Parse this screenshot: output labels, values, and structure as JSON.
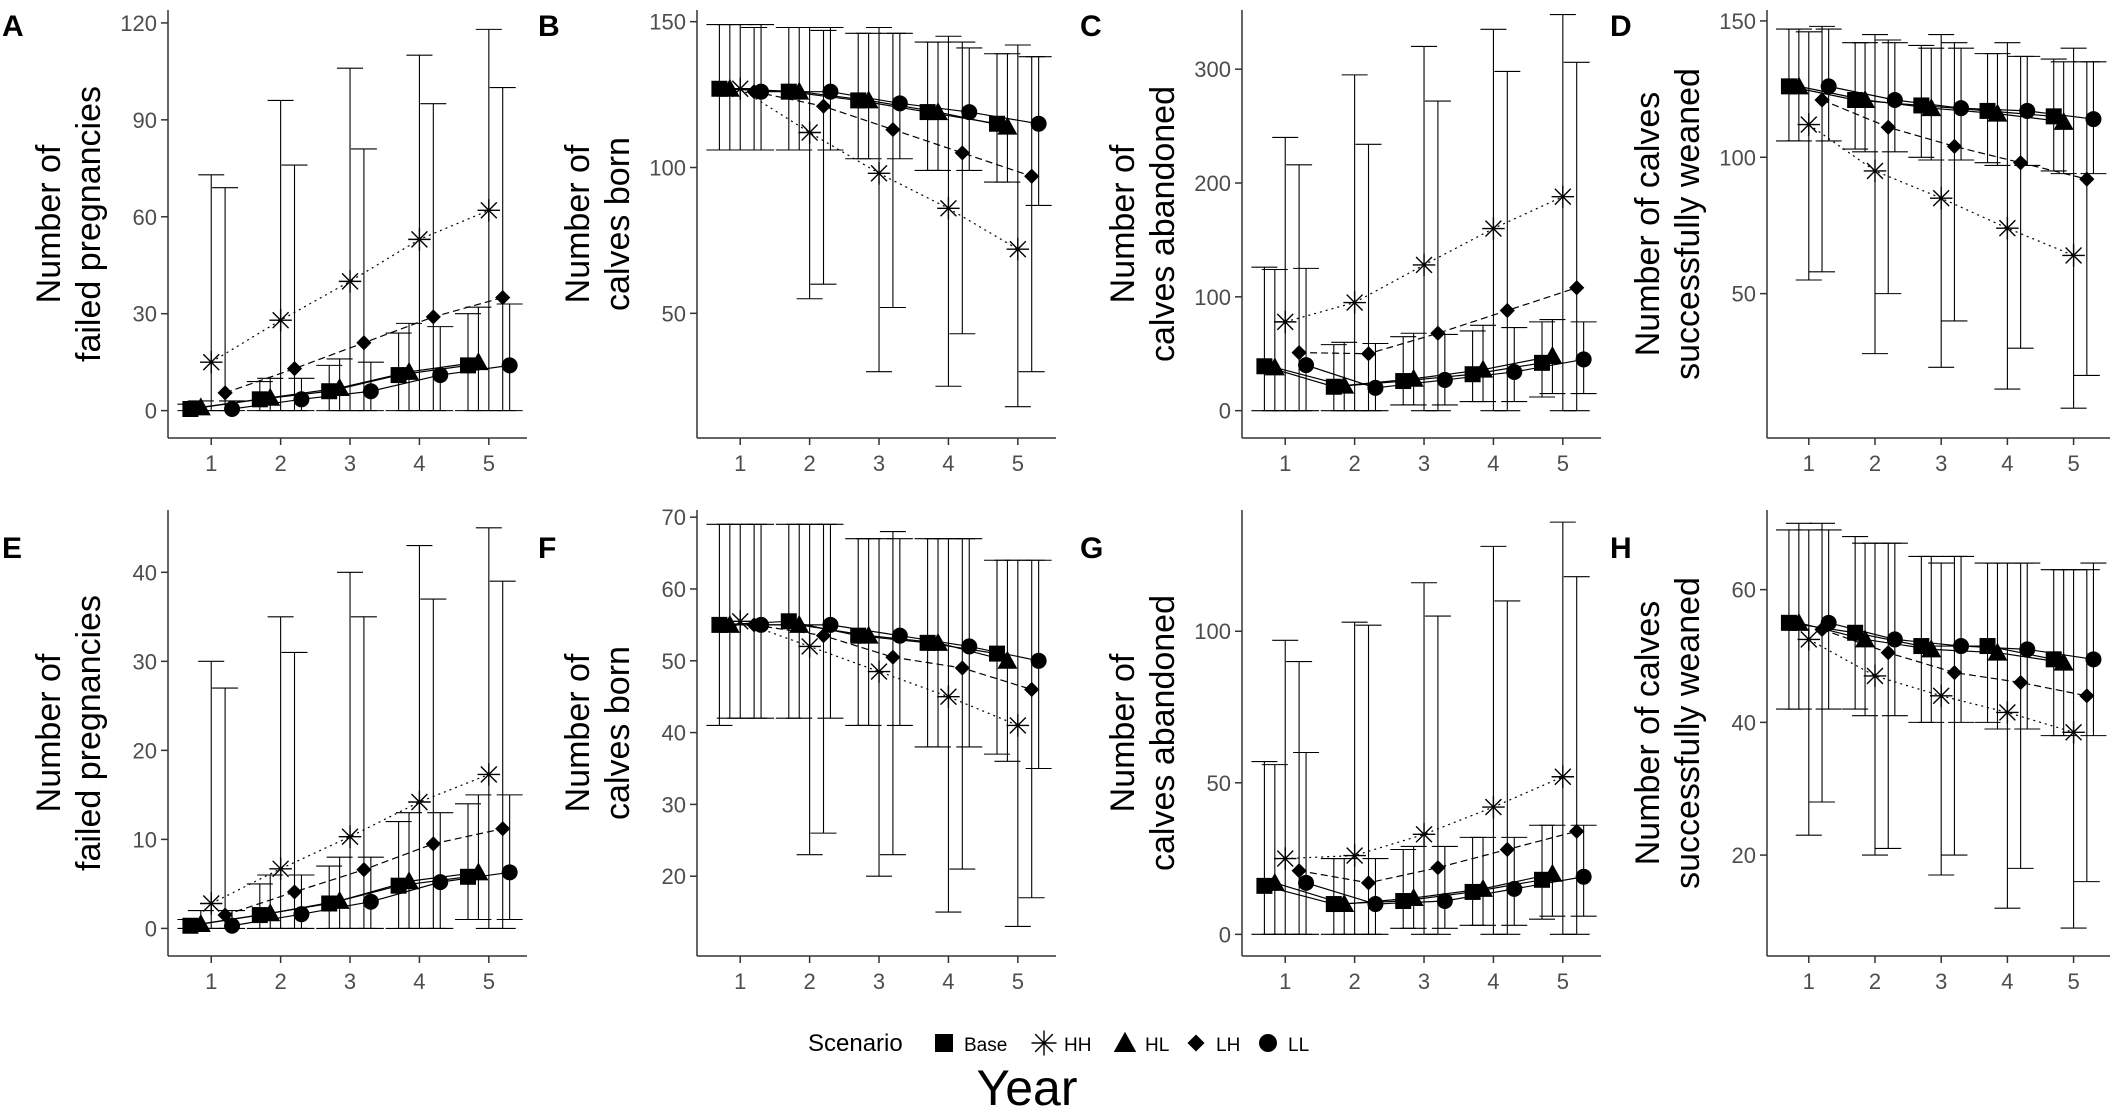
{
  "figure": {
    "x_title": "Year",
    "legend_title": "Scenario",
    "scenarios": [
      {
        "code": "Base",
        "label": "Base",
        "marker": "square-icon"
      },
      {
        "code": "HH",
        "label": "HH",
        "marker": "asterisk-icon"
      },
      {
        "code": "HL",
        "label": "HL",
        "marker": "triangle-icon"
      },
      {
        "code": "LH",
        "label": "LH",
        "marker": "diamond-icon"
      },
      {
        "code": "LL",
        "label": "LL",
        "marker": "circle-icon"
      }
    ],
    "colors": {
      "ink": "#000000",
      "axis": "#333333",
      "tick_text": "#4d4d4d",
      "background": "#ffffff"
    }
  },
  "chart_data": [
    {
      "panel": "A",
      "type": "scatter",
      "ylabel": [
        "Number of",
        "failed pregnancies"
      ],
      "x": [
        1,
        2,
        3,
        4,
        5
      ],
      "xlim": [
        0.55,
        5.55
      ],
      "ylim": [
        -6,
        124
      ],
      "yticks": [
        0,
        30,
        60,
        90,
        120
      ],
      "series": [
        {
          "name": "Base",
          "values": [
            0.5,
            3.5,
            6,
            11,
            14
          ],
          "err_lo": [
            0,
            0,
            0,
            0,
            0
          ],
          "err_hi": [
            2,
            9,
            14,
            24,
            30
          ]
        },
        {
          "name": "HH",
          "values": [
            15,
            28,
            40,
            53,
            62
          ],
          "err_lo": [
            0,
            0,
            0,
            0,
            0
          ],
          "err_hi": [
            73,
            96,
            106,
            110,
            118
          ]
        },
        {
          "name": "HL",
          "values": [
            1,
            4,
            7,
            12,
            15
          ],
          "err_lo": [
            0,
            0,
            0,
            0,
            0
          ],
          "err_hi": [
            3,
            10,
            16,
            27,
            32
          ]
        },
        {
          "name": "LH",
          "values": [
            5.5,
            13,
            21,
            29,
            35
          ],
          "err_lo": [
            0,
            0,
            0,
            0,
            0
          ],
          "err_hi": [
            69,
            76,
            81,
            95,
            100
          ]
        },
        {
          "name": "LL",
          "values": [
            0.5,
            3.5,
            6,
            11,
            14
          ],
          "err_lo": [
            0,
            0,
            0,
            0,
            0
          ],
          "err_hi": [
            3,
            10,
            15,
            26,
            33
          ]
        }
      ]
    },
    {
      "panel": "B",
      "type": "scatter",
      "ylabel": [
        "Number of",
        "calves born"
      ],
      "x": [
        1,
        2,
        3,
        4,
        5
      ],
      "xlim": [
        0.55,
        5.55
      ],
      "ylim": [
        10,
        154
      ],
      "yticks": [
        50,
        100,
        150
      ],
      "series": [
        {
          "name": "Base",
          "values": [
            127,
            126,
            123,
            119,
            115
          ],
          "err_lo": [
            106,
            106,
            103,
            99,
            95
          ],
          "err_hi": [
            149,
            148,
            146,
            143,
            139
          ]
        },
        {
          "name": "HH",
          "values": [
            127,
            112,
            98,
            86,
            72
          ],
          "err_lo": [
            106,
            55,
            30,
            25,
            18
          ],
          "err_hi": [
            149,
            148,
            148,
            145,
            142
          ]
        },
        {
          "name": "HL",
          "values": [
            127,
            126,
            123,
            119,
            114
          ],
          "err_lo": [
            106,
            106,
            103,
            99,
            95
          ],
          "err_hi": [
            149,
            148,
            146,
            143,
            139
          ]
        },
        {
          "name": "LH",
          "values": [
            126,
            121,
            113,
            105,
            97
          ],
          "err_lo": [
            106,
            60,
            52,
            43,
            30
          ],
          "err_hi": [
            148,
            147,
            146,
            143,
            138
          ]
        },
        {
          "name": "LL",
          "values": [
            126,
            126,
            122,
            119,
            115
          ],
          "err_lo": [
            106,
            106,
            103,
            99,
            87
          ],
          "err_hi": [
            149,
            148,
            146,
            141,
            138
          ]
        }
      ]
    },
    {
      "panel": "C",
      "type": "scatter",
      "ylabel": [
        "Number of",
        "calves abandoned"
      ],
      "x": [
        1,
        2,
        3,
        4,
        5
      ],
      "xlim": [
        0.55,
        5.55
      ],
      "ylim": [
        -17,
        352
      ],
      "yticks": [
        0,
        100,
        200,
        300
      ],
      "series": [
        {
          "name": "Base",
          "values": [
            39,
            21,
            26,
            32,
            42
          ],
          "err_lo": [
            0,
            0,
            5,
            8,
            12
          ],
          "err_hi": [
            126,
            58,
            65,
            70,
            78
          ]
        },
        {
          "name": "HH",
          "values": [
            78,
            95,
            128,
            160,
            188
          ],
          "err_lo": [
            0,
            0,
            0,
            0,
            0
          ],
          "err_hi": [
            240,
            295,
            320,
            335,
            348
          ]
        },
        {
          "name": "HL",
          "values": [
            38,
            22,
            28,
            36,
            48
          ],
          "err_lo": [
            0,
            0,
            5,
            8,
            15
          ],
          "err_hi": [
            124,
            60,
            68,
            75,
            80
          ]
        },
        {
          "name": "LH",
          "values": [
            51,
            50,
            68,
            88,
            108
          ],
          "err_lo": [
            0,
            0,
            0,
            0,
            0
          ],
          "err_hi": [
            216,
            234,
            272,
            298,
            306
          ]
        },
        {
          "name": "LL",
          "values": [
            40,
            20,
            27,
            34,
            45
          ],
          "err_lo": [
            0,
            0,
            5,
            8,
            15
          ],
          "err_hi": [
            125,
            59,
            67,
            73,
            78
          ]
        }
      ]
    },
    {
      "panel": "D",
      "type": "scatter",
      "ylabel": [
        "Number of calves",
        "successfully weaned"
      ],
      "x": [
        1,
        2,
        3,
        4,
        5
      ],
      "xlim": [
        0.55,
        5.55
      ],
      "ylim": [
        0,
        154
      ],
      "yticks": [
        50,
        100,
        150
      ],
      "series": [
        {
          "name": "Base",
          "values": [
            126,
            121,
            119,
            117,
            115
          ],
          "err_lo": [
            106,
            103,
            100,
            98,
            95
          ],
          "err_hi": [
            147,
            142,
            141,
            138,
            136
          ]
        },
        {
          "name": "HH",
          "values": [
            112,
            95,
            85,
            74,
            64
          ],
          "err_lo": [
            55,
            28,
            23,
            15,
            8
          ],
          "err_hi": [
            146,
            145,
            145,
            142,
            140
          ]
        },
        {
          "name": "HL",
          "values": [
            126,
            121,
            118,
            116,
            113
          ],
          "err_lo": [
            106,
            102,
            99,
            97,
            94
          ],
          "err_hi": [
            147,
            142,
            140,
            138,
            135
          ]
        },
        {
          "name": "LH",
          "values": [
            121,
            111,
            104,
            98,
            92
          ],
          "err_lo": [
            58,
            50,
            40,
            30,
            20
          ],
          "err_hi": [
            148,
            143,
            142,
            137,
            135
          ]
        },
        {
          "name": "LL",
          "values": [
            126,
            121,
            118,
            117,
            114
          ],
          "err_lo": [
            106,
            102,
            99,
            97,
            94
          ],
          "err_hi": [
            147,
            142,
            140,
            137,
            135
          ]
        }
      ]
    },
    {
      "panel": "E",
      "type": "scatter",
      "ylabel": [
        "Number of",
        "failed pregnancies"
      ],
      "x": [
        1,
        2,
        3,
        4,
        5
      ],
      "xlim": [
        0.55,
        5.55
      ],
      "ylim": [
        -2.2,
        47
      ],
      "yticks": [
        0,
        10,
        20,
        30,
        40
      ],
      "series": [
        {
          "name": "Base",
          "values": [
            0.3,
            1.5,
            2.8,
            4.8,
            5.8
          ],
          "err_lo": [
            0,
            0,
            0,
            0,
            1
          ],
          "err_hi": [
            1,
            5,
            7,
            12,
            14
          ]
        },
        {
          "name": "HH",
          "values": [
            2.8,
            6.7,
            10.3,
            14.2,
            17.3
          ],
          "err_lo": [
            0,
            0,
            0,
            0,
            0
          ],
          "err_hi": [
            30,
            35,
            40,
            43,
            45
          ]
        },
        {
          "name": "HL",
          "values": [
            0.5,
            1.7,
            3.1,
            5.3,
            6.3
          ],
          "err_lo": [
            0,
            0,
            0,
            0,
            1
          ],
          "err_hi": [
            2,
            6,
            8,
            13,
            15
          ]
        },
        {
          "name": "LH",
          "values": [
            1.5,
            4.1,
            6.6,
            9.5,
            11.2
          ],
          "err_lo": [
            0,
            0,
            0,
            0,
            0
          ],
          "err_hi": [
            27,
            31,
            35,
            37,
            39
          ]
        },
        {
          "name": "LL",
          "values": [
            0.3,
            1.6,
            3,
            5.2,
            6.3
          ],
          "err_lo": [
            0,
            0,
            0,
            0,
            1
          ],
          "err_hi": [
            2,
            6,
            8,
            13,
            15
          ]
        }
      ]
    },
    {
      "panel": "F",
      "type": "scatter",
      "ylabel": [
        "Number of",
        "calves born"
      ],
      "x": [
        1,
        2,
        3,
        4,
        5
      ],
      "xlim": [
        0.55,
        5.55
      ],
      "ylim": [
        10,
        71
      ],
      "yticks": [
        20,
        30,
        40,
        50,
        60,
        70
      ],
      "series": [
        {
          "name": "Base",
          "values": [
            55,
            55.5,
            53.5,
            52.5,
            51
          ],
          "err_lo": [
            41,
            42,
            41,
            38,
            37
          ],
          "err_hi": [
            69,
            69,
            67,
            67,
            64
          ]
        },
        {
          "name": "HH",
          "values": [
            55.5,
            52,
            48.5,
            45,
            41
          ],
          "err_lo": [
            42,
            23,
            20,
            15,
            13
          ],
          "err_hi": [
            69,
            69,
            67,
            67,
            64
          ]
        },
        {
          "name": "HL",
          "values": [
            55,
            55,
            53.5,
            52.5,
            50
          ],
          "err_lo": [
            42,
            42,
            41,
            38,
            36
          ],
          "err_hi": [
            69,
            69,
            67,
            67,
            64
          ]
        },
        {
          "name": "LH",
          "values": [
            55,
            53.5,
            50.5,
            49,
            46
          ],
          "err_lo": [
            42,
            26,
            23,
            21,
            17
          ],
          "err_hi": [
            69,
            69,
            68,
            67,
            64
          ]
        },
        {
          "name": "LL",
          "values": [
            55,
            55,
            53.5,
            52,
            50
          ],
          "err_lo": [
            42,
            42,
            41,
            38,
            35
          ],
          "err_hi": [
            69,
            69,
            67,
            67,
            64
          ]
        }
      ]
    },
    {
      "panel": "G",
      "type": "scatter",
      "ylabel": [
        "Number of",
        "calves abandoned"
      ],
      "x": [
        1,
        2,
        3,
        4,
        5
      ],
      "xlim": [
        0.55,
        5.55
      ],
      "ylim": [
        -4.5,
        140
      ],
      "yticks": [
        0,
        50,
        100
      ],
      "series": [
        {
          "name": "Base",
          "values": [
            16,
            10,
            11,
            14,
            18
          ],
          "err_lo": [
            0,
            0,
            2,
            3,
            5
          ],
          "err_hi": [
            57,
            25,
            28,
            32,
            36
          ]
        },
        {
          "name": "HH",
          "values": [
            25,
            26,
            33,
            42,
            52
          ],
          "err_lo": [
            0,
            0,
            0,
            0,
            0
          ],
          "err_hi": [
            97,
            103,
            116,
            128,
            136
          ]
        },
        {
          "name": "HL",
          "values": [
            17,
            10,
            12,
            15,
            20
          ],
          "err_lo": [
            0,
            0,
            2,
            3,
            6
          ],
          "err_hi": [
            56,
            25,
            29,
            32,
            36
          ]
        },
        {
          "name": "LH",
          "values": [
            21,
            17,
            22,
            28,
            34
          ],
          "err_lo": [
            0,
            0,
            0,
            0,
            0
          ],
          "err_hi": [
            90,
            102,
            105,
            110,
            118
          ]
        },
        {
          "name": "LL",
          "values": [
            17,
            10,
            11,
            15,
            19
          ],
          "err_lo": [
            0,
            0,
            2,
            3,
            6
          ],
          "err_hi": [
            60,
            25,
            29,
            32,
            36
          ]
        }
      ]
    },
    {
      "panel": "H",
      "type": "scatter",
      "ylabel": [
        "Number of calves",
        "successfully weaned"
      ],
      "x": [
        1,
        2,
        3,
        4,
        5
      ],
      "xlim": [
        0.55,
        5.55
      ],
      "ylim": [
        6,
        72
      ],
      "yticks": [
        20,
        40,
        60
      ],
      "series": [
        {
          "name": "Base",
          "values": [
            55,
            53.5,
            51.5,
            51.5,
            49.5
          ],
          "err_lo": [
            42,
            42,
            40,
            40,
            38
          ],
          "err_hi": [
            69,
            68,
            65,
            64,
            63
          ]
        },
        {
          "name": "HH",
          "values": [
            52.5,
            47,
            44,
            41.5,
            38.5
          ],
          "err_lo": [
            23,
            20,
            17,
            12,
            9
          ],
          "err_hi": [
            69,
            67,
            64,
            64,
            63
          ]
        },
        {
          "name": "HL",
          "values": [
            55,
            52.5,
            51,
            50.5,
            49
          ],
          "err_lo": [
            42,
            41,
            40,
            39,
            38
          ],
          "err_hi": [
            70,
            67,
            65,
            64,
            63
          ]
        },
        {
          "name": "LH",
          "values": [
            54,
            50.5,
            47.5,
            46,
            44
          ],
          "err_lo": [
            28,
            21,
            20,
            18,
            16
          ],
          "err_hi": [
            70,
            67,
            65,
            64,
            63
          ]
        },
        {
          "name": "LL",
          "values": [
            55,
            52.5,
            51.5,
            51,
            49.5
          ],
          "err_lo": [
            42,
            41,
            40,
            39,
            38
          ],
          "err_hi": [
            69,
            67,
            65,
            64,
            64
          ]
        }
      ]
    }
  ]
}
